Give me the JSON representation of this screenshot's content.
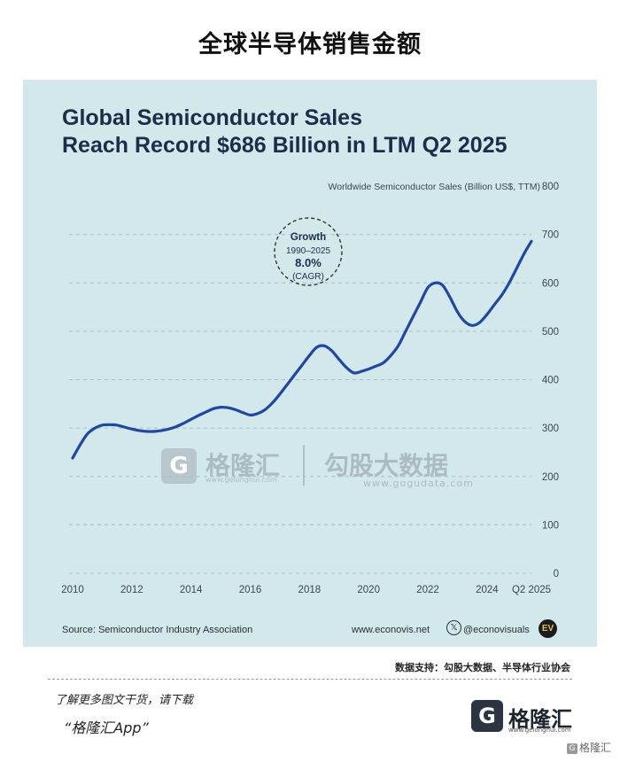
{
  "page": {
    "title": "全球半导体销售金额",
    "data_support": "数据支持：勾股大数据、半导体行业协会",
    "promo_line1": "了解更多图文干货，请下载",
    "promo_line2": "“格隆汇App”",
    "brand_icon": "G",
    "brand_name": "格隆汇",
    "brand_url": "www.gelonghui.com",
    "bottom_tag": "格隆汇"
  },
  "watermark": {
    "icon_letter": "G",
    "name1": "格隆汇",
    "url1": "www.gelonghui.com",
    "name2": "勾股大数据",
    "url2": "www.gogudata.com"
  },
  "chart_meta": {
    "title_line1": "Global Semiconductor Sales",
    "title_line2": "Reach Record $686 Billion in LTM Q2 2025",
    "y_axis_caption": "Worldwide Semiconductor Sales (Billion US$, TTM)",
    "source": "Source: Semiconductor Industry Association",
    "website": "www.econovis.net",
    "handle": "@econovisuals",
    "x_icon": "𝕏",
    "logo_text": "EV",
    "colors": {
      "background": "#d3e8ea",
      "line": "#1f47a8",
      "text": "#1c2d4a"
    },
    "annotation": {
      "line1": "Growth",
      "line2": "1990–2025",
      "line3": "8.0%",
      "line4": "(CAGR)"
    }
  },
  "chart_data": {
    "type": "line",
    "title": "Global Semiconductor Sales Reach Record $686 Billion in LTM Q2 2025",
    "ylabel": "Worldwide Semiconductor Sales (Billion US$, TTM)",
    "ylim": [
      0,
      800
    ],
    "y_ticks": [
      0,
      100,
      200,
      300,
      400,
      500,
      600,
      700,
      800
    ],
    "xlim": [
      2010,
      2025.5
    ],
    "x_ticks": [
      2010,
      2012,
      2014,
      2016,
      2018,
      2020,
      2022,
      2024,
      2025.5
    ],
    "x_tick_labels": [
      "2010",
      "2012",
      "2014",
      "2016",
      "2018",
      "2020",
      "2022",
      "2024",
      "Q2 2025"
    ],
    "grid": "horizontal dashed",
    "series": [
      {
        "x": [
          2010.0,
          2010.25,
          2010.5,
          2010.75,
          2011.0,
          2011.25,
          2011.5,
          2011.75,
          2012.0,
          2012.25,
          2012.5,
          2012.75,
          2013.0,
          2013.25,
          2013.5,
          2013.75,
          2014.0,
          2014.25,
          2014.5,
          2014.75,
          2015.0,
          2015.25,
          2015.5,
          2015.75,
          2016.0,
          2016.25,
          2016.5,
          2016.75,
          2017.0,
          2017.25,
          2017.5,
          2017.75,
          2018.0,
          2018.25,
          2018.5,
          2018.75,
          2019.0,
          2019.25,
          2019.5,
          2019.75,
          2020.0,
          2020.25,
          2020.5,
          2020.75,
          2021.0,
          2021.25,
          2021.5,
          2021.75,
          2022.0,
          2022.25,
          2022.5,
          2022.75,
          2023.0,
          2023.25,
          2023.5,
          2023.75,
          2024.0,
          2024.25,
          2024.5,
          2024.75,
          2025.0,
          2025.25,
          2025.5
        ],
        "y": [
          238,
          265,
          288,
          300,
          306,
          307,
          306,
          302,
          298,
          295,
          293,
          293,
          295,
          298,
          303,
          310,
          318,
          326,
          333,
          340,
          343,
          342,
          338,
          332,
          327,
          330,
          338,
          352,
          370,
          390,
          410,
          430,
          450,
          467,
          470,
          460,
          442,
          425,
          414,
          417,
          422,
          428,
          435,
          450,
          470,
          500,
          530,
          560,
          590,
          600,
          595,
          570,
          540,
          520,
          512,
          518,
          535,
          555,
          575,
          600,
          630,
          660,
          686
        ]
      }
    ],
    "annotations": [
      {
        "text": "Growth 1990–2025 8.0% (CAGR)"
      }
    ]
  }
}
